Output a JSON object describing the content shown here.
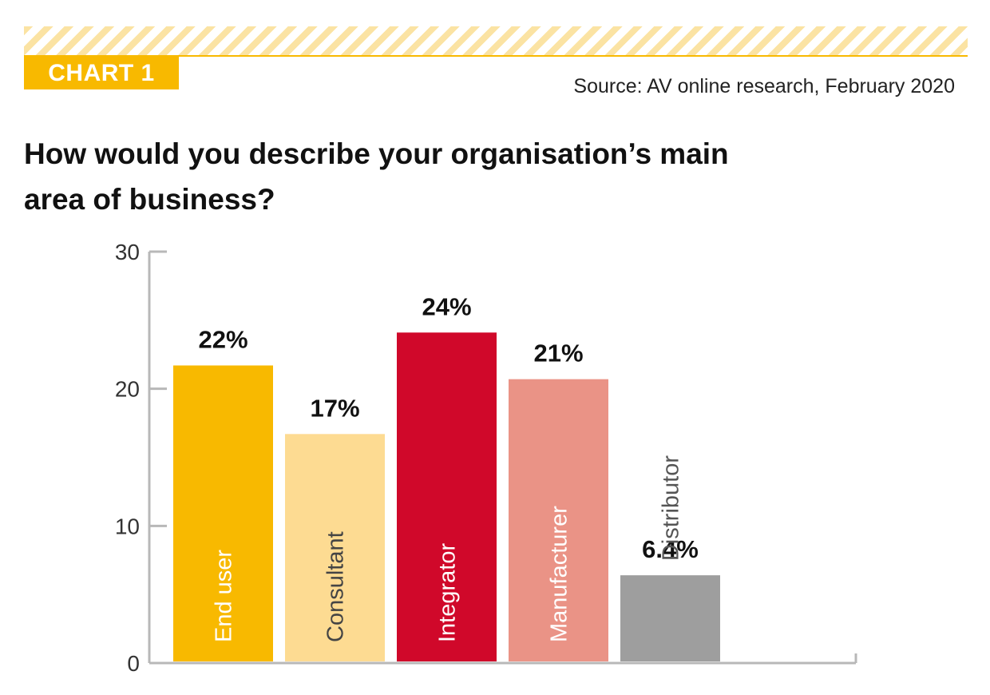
{
  "header": {
    "badge": "CHART 1",
    "source": "Source: AV online research, February 2020",
    "title": "How would you describe your organisation’s main area of business?"
  },
  "colors": {
    "accent": "#f8b900",
    "stripe": "#fbe3a3",
    "axis": "#b8b8b8",
    "tick_text": "#333333"
  },
  "chart_data": {
    "type": "bar",
    "title": "How would you describe your organisation’s main area of business?",
    "categories": [
      "End user",
      "Consultant",
      "Integrator",
      "Manufacturer",
      "Distributor"
    ],
    "values": [
      21.7,
      16.7,
      24.1,
      20.7,
      6.4
    ],
    "data_labels": [
      "22%",
      "17%",
      "24%",
      "21%",
      "6.4%"
    ],
    "colors": [
      "#f8b900",
      "#fddb92",
      "#d0082a",
      "#ea9386",
      "#9e9e9e"
    ],
    "label_colors": [
      "#ffffff",
      "#444444",
      "#ffffff",
      "#ffffff",
      "#555555"
    ],
    "ylim": [
      0,
      30
    ],
    "yticks": [
      0,
      10,
      20,
      30
    ],
    "xlabel": "",
    "ylabel": "",
    "grid": false,
    "legend": "none"
  }
}
